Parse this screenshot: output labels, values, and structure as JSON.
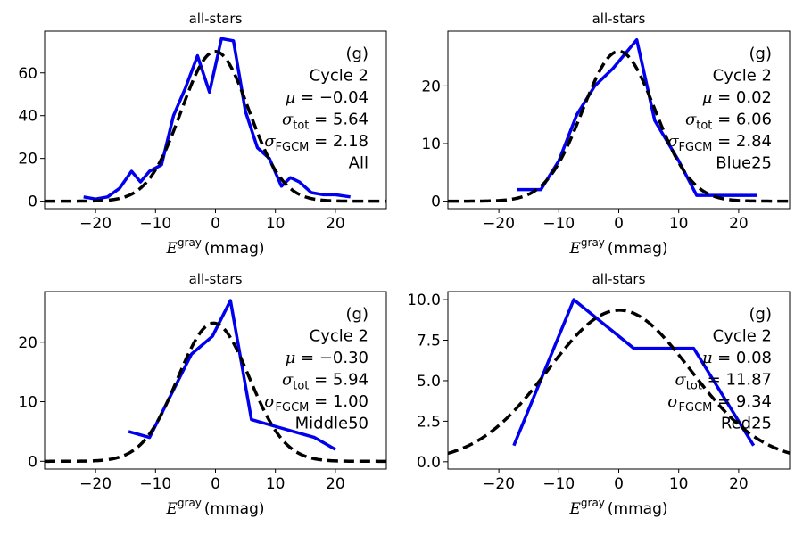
{
  "chart_data": [
    {
      "type": "line",
      "title": "all-stars",
      "xlabel_symbol": "E",
      "xlabel_sup": "gray",
      "xlabel_unit": "(mmag)",
      "xlim": [
        -28.5,
        28.5
      ],
      "ylim": [
        -3.5,
        79.5
      ],
      "xticks": [
        -20,
        -10,
        0,
        10,
        20
      ],
      "xtick_labels": [
        "−20",
        "−10",
        "0",
        "10",
        "20"
      ],
      "yticks": [
        0,
        20,
        40,
        60
      ],
      "ytick_labels": [
        "0",
        "20",
        "40",
        "60"
      ],
      "band_label": "(g)",
      "cycle_label": "Cycle 2",
      "mu_label": "μ = −0.04",
      "sigma_tot_label": "σtot = 5.64",
      "sigma_fgcm_label": "σFGCM = 2.18",
      "subset_label": "All",
      "mu_value": "−0.04",
      "sigma_tot_value": "5.64",
      "sigma_fgcm_value": "2.18",
      "series": [
        {
          "name": "histogram",
          "style": "solid",
          "color": "#0000ee",
          "x": [
            -22,
            -20,
            -18,
            -16,
            -14,
            -12.5,
            -11,
            -9,
            -7,
            -5,
            -3,
            -1,
            1,
            3,
            5,
            7,
            9,
            11,
            12.5,
            14,
            16,
            18,
            20,
            22.5
          ],
          "y": [
            2,
            1,
            2,
            6,
            14,
            9,
            14,
            17,
            40,
            53,
            68,
            51,
            76,
            75,
            42,
            25,
            20,
            7,
            11,
            9,
            4,
            3,
            3,
            2
          ]
        },
        {
          "name": "gaussian fit",
          "style": "dashed",
          "color": "#000000",
          "gauss": {
            "amp": 70,
            "mu": -0.04,
            "sigma": 5.64
          }
        }
      ]
    },
    {
      "type": "line",
      "title": "all-stars",
      "xlabel_symbol": "E",
      "xlabel_sup": "gray",
      "xlabel_unit": "(mmag)",
      "xlim": [
        -28.5,
        28.5
      ],
      "ylim": [
        -1.3,
        29.5
      ],
      "xticks": [
        -20,
        -10,
        0,
        10,
        20
      ],
      "xtick_labels": [
        "−20",
        "−10",
        "0",
        "10",
        "20"
      ],
      "yticks": [
        0,
        10,
        20
      ],
      "ytick_labels": [
        "0",
        "10",
        "20"
      ],
      "band_label": "(g)",
      "cycle_label": "Cycle 2",
      "mu_label": "μ = 0.02",
      "sigma_tot_label": "σtot = 6.06",
      "sigma_fgcm_label": "σFGCM = 2.84",
      "subset_label": "Blue25",
      "mu_value": "0.02",
      "sigma_tot_value": "6.06",
      "sigma_fgcm_value": "2.84",
      "series": [
        {
          "name": "histogram",
          "style": "solid",
          "color": "#0000ee",
          "x": [
            -17,
            -13,
            -10,
            -7,
            -4,
            -1,
            3,
            6,
            10,
            13,
            17,
            23
          ],
          "y": [
            2,
            2,
            7,
            15,
            20,
            23,
            28,
            14,
            7,
            1,
            1,
            1
          ]
        },
        {
          "name": "gaussian fit",
          "style": "dashed",
          "color": "#000000",
          "gauss": {
            "amp": 26,
            "mu": 0.02,
            "sigma": 6.06
          }
        }
      ]
    },
    {
      "type": "line",
      "title": "all-stars",
      "xlabel_symbol": "E",
      "xlabel_sup": "gray",
      "xlabel_unit": "(mmag)",
      "xlim": [
        -28.5,
        28.5
      ],
      "ylim": [
        -1.3,
        28.5
      ],
      "xticks": [
        -20,
        -10,
        0,
        10,
        20
      ],
      "xtick_labels": [
        "−20",
        "−10",
        "0",
        "10",
        "20"
      ],
      "yticks": [
        0,
        10,
        20
      ],
      "ytick_labels": [
        "0",
        "10",
        "20"
      ],
      "band_label": "(g)",
      "cycle_label": "Cycle 2",
      "mu_label": "μ = −0.30",
      "sigma_tot_label": "σtot = 5.94",
      "sigma_fgcm_label": "σFGCM = 1.00",
      "subset_label": "Middle50",
      "mu_value": "−0.30",
      "sigma_tot_value": "5.94",
      "sigma_fgcm_value": "1.00",
      "series": [
        {
          "name": "histogram",
          "style": "solid",
          "color": "#0000ee",
          "x": [
            -14.5,
            -11,
            -7.5,
            -4,
            -0.5,
            2.5,
            6,
            9.5,
            13,
            16.5,
            20
          ],
          "y": [
            5,
            4,
            11,
            18,
            21,
            27,
            7,
            6,
            5,
            4,
            2
          ]
        },
        {
          "name": "gaussian fit",
          "style": "dashed",
          "color": "#000000",
          "gauss": {
            "amp": 23.2,
            "mu": -0.3,
            "sigma": 5.94
          }
        }
      ]
    },
    {
      "type": "line",
      "title": "all-stars",
      "xlabel_symbol": "E",
      "xlabel_sup": "gray",
      "xlabel_unit": "(mmag)",
      "xlim": [
        -28.5,
        28.5
      ],
      "ylim": [
        -0.45,
        10.5
      ],
      "xticks": [
        -20,
        -10,
        0,
        10,
        20
      ],
      "xtick_labels": [
        "−20",
        "−10",
        "0",
        "10",
        "20"
      ],
      "yticks": [
        0,
        2.5,
        5,
        7.5,
        10
      ],
      "ytick_labels": [
        "0.0",
        "2.5",
        "5.0",
        "7.5",
        "10.0"
      ],
      "band_label": "(g)",
      "cycle_label": "Cycle 2",
      "mu_label": "μ = 0.08",
      "sigma_tot_label": "σtot = 11.87",
      "sigma_fgcm_label": "σFGCM = 9.34",
      "subset_label": "Red25",
      "mu_value": "0.08",
      "sigma_tot_value": "11.87",
      "sigma_fgcm_value": "9.34",
      "series": [
        {
          "name": "histogram",
          "style": "solid",
          "color": "#0000ee",
          "x": [
            -17.5,
            -7.5,
            2.5,
            12.5,
            22.5
          ],
          "y": [
            1,
            10,
            7,
            7,
            1
          ]
        },
        {
          "name": "gaussian fit",
          "style": "dashed",
          "color": "#000000",
          "gauss": {
            "amp": 9.35,
            "mu": 0.08,
            "sigma": 11.87
          }
        }
      ]
    }
  ]
}
